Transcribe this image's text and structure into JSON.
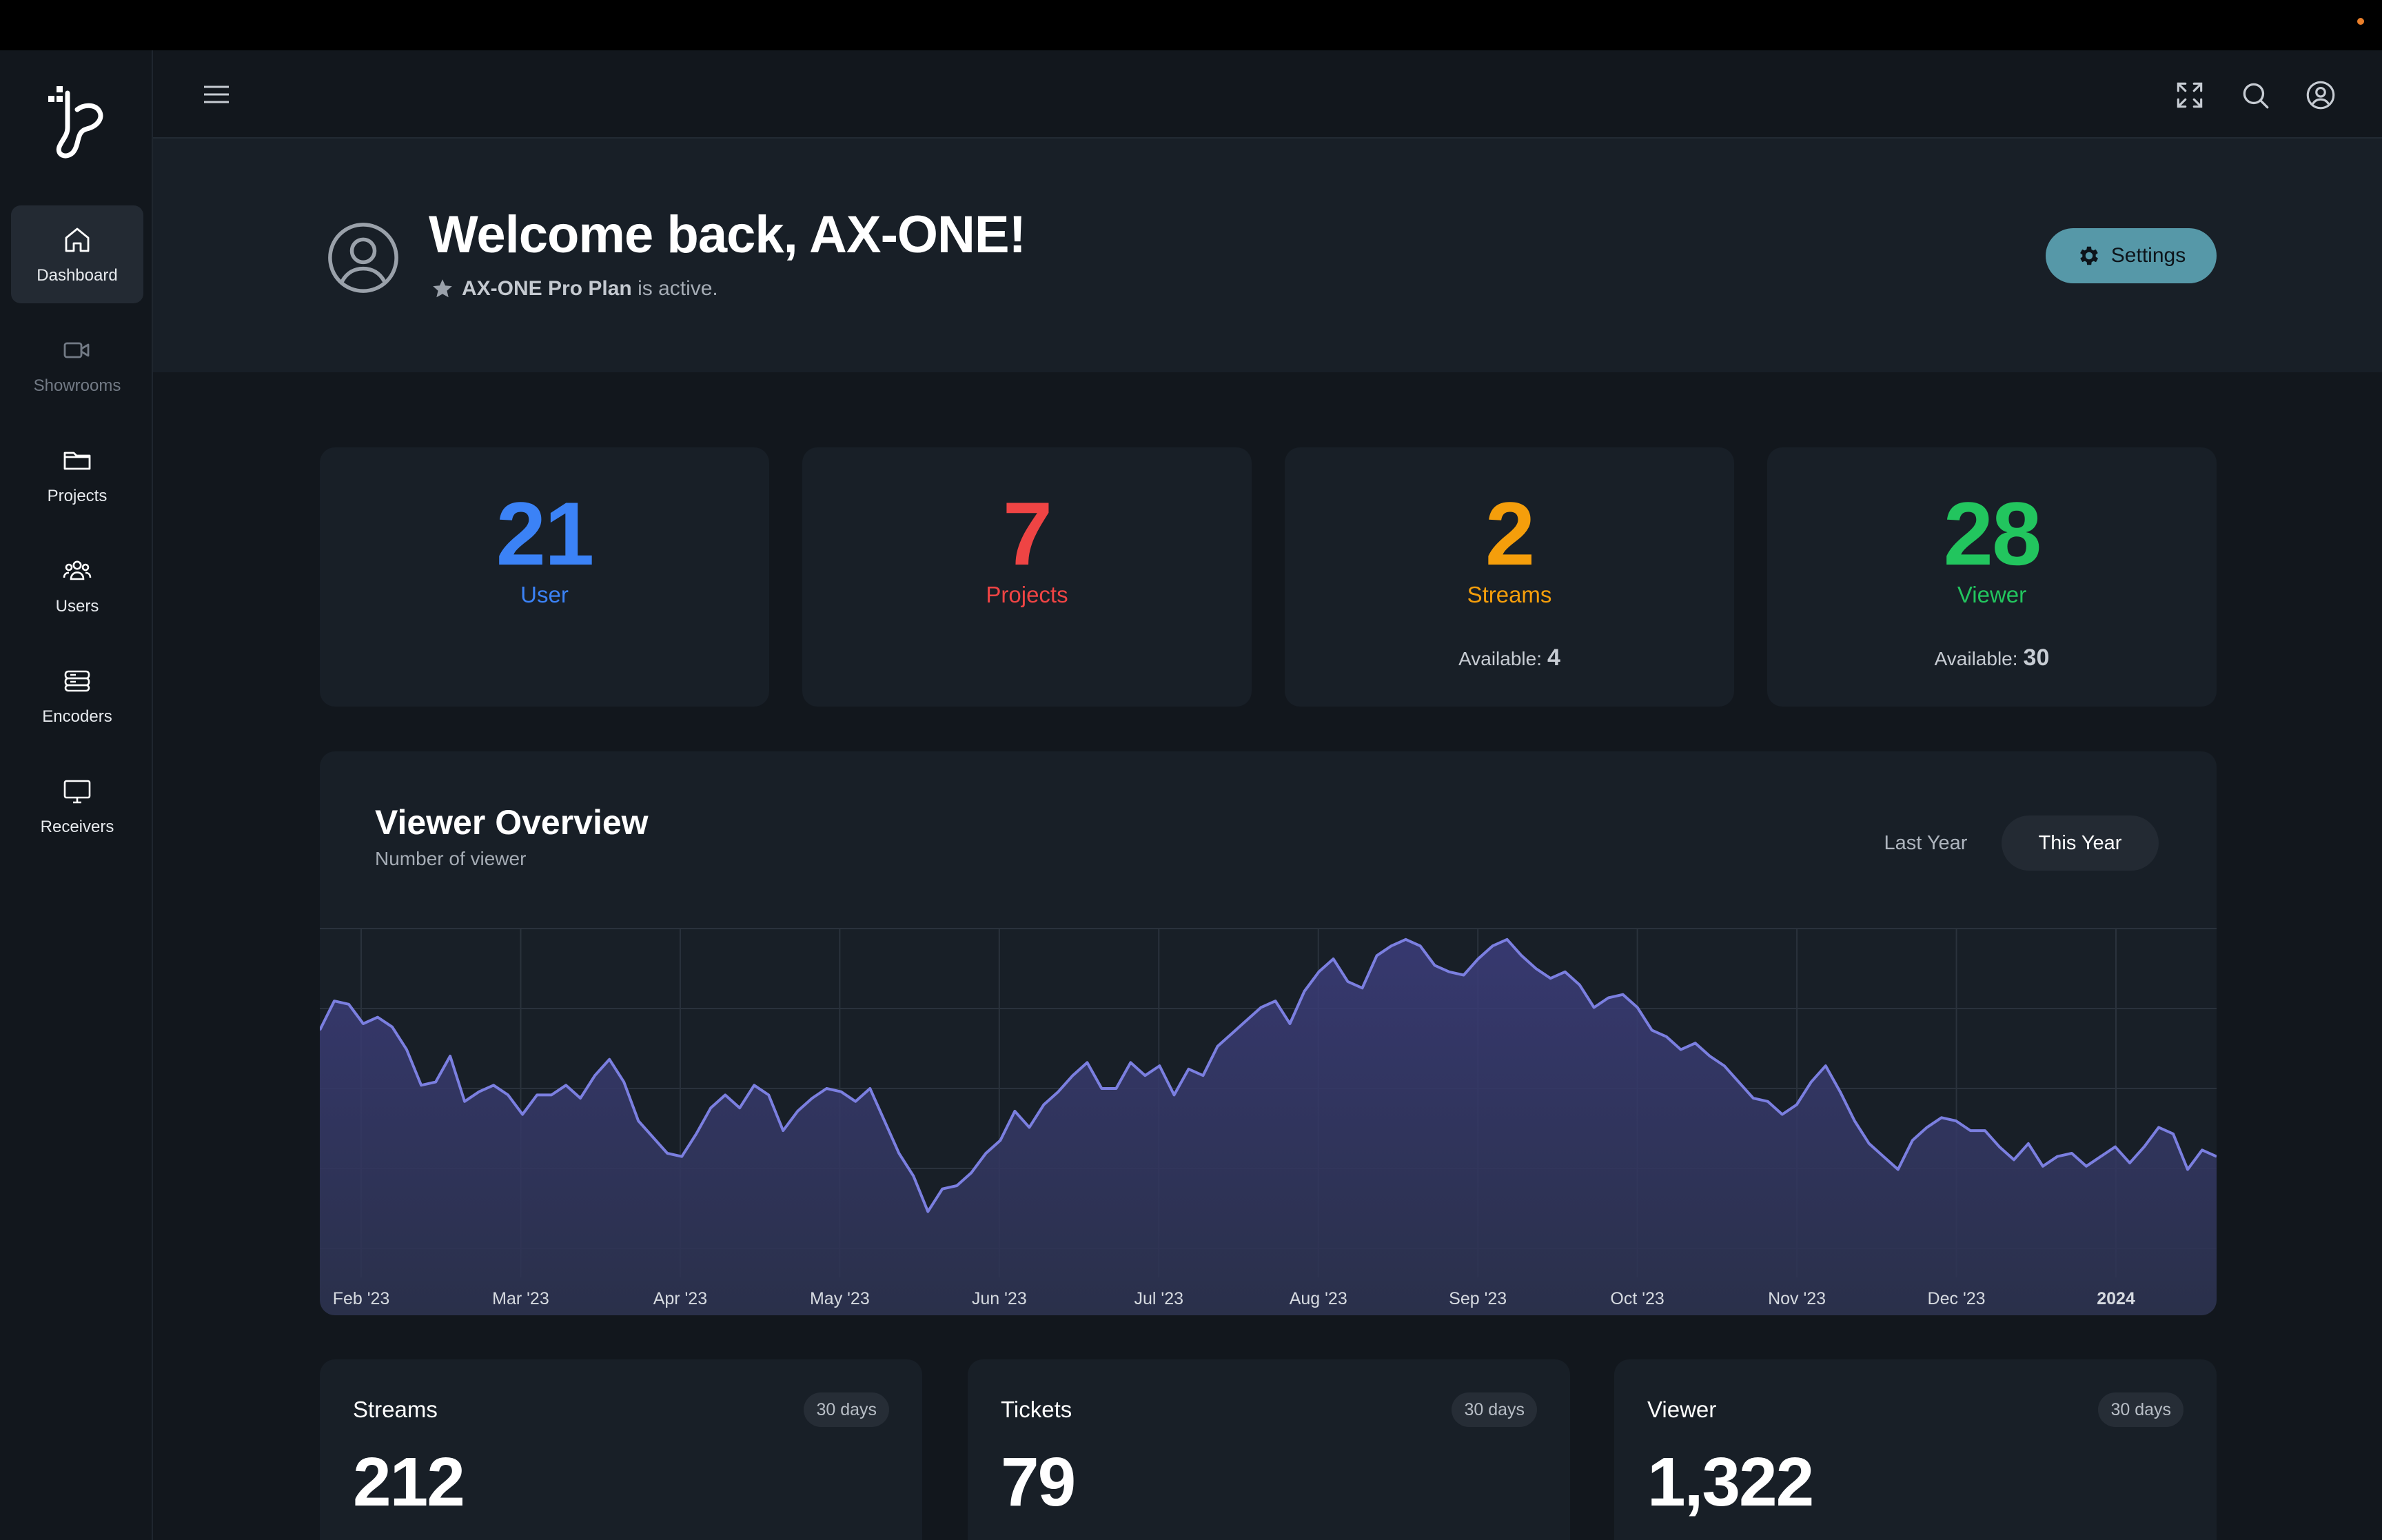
{
  "sidebar": {
    "items": [
      {
        "label": "Dashboard",
        "icon": "home-icon",
        "active": true
      },
      {
        "label": "Showrooms",
        "icon": "video-camera-icon",
        "active": false
      },
      {
        "label": "Projects",
        "icon": "folder-icon",
        "active": false
      },
      {
        "label": "Users",
        "icon": "users-icon",
        "active": false
      },
      {
        "label": "Encoders",
        "icon": "server-icon",
        "active": false
      },
      {
        "label": "Receivers",
        "icon": "monitor-icon",
        "active": false
      }
    ]
  },
  "header": {
    "icons": [
      "menu-icon",
      "fullscreen-icon",
      "search-icon",
      "account-icon"
    ]
  },
  "hero": {
    "welcome": "Welcome back, AX-ONE!",
    "plan_name": "AX-ONE Pro Plan",
    "plan_suffix": "is active.",
    "settings_label": "Settings"
  },
  "stats": [
    {
      "value": "21",
      "label": "User",
      "color": "#3b82f6"
    },
    {
      "value": "7",
      "label": "Projects",
      "color": "#ef4444"
    },
    {
      "value": "2",
      "label": "Streams",
      "color": "#f59e0b",
      "available_label": "Available:",
      "available_value": "4"
    },
    {
      "value": "28",
      "label": "Viewer",
      "color": "#22c55e",
      "available_label": "Available:",
      "available_value": "30"
    }
  ],
  "viewer_overview": {
    "title": "Viewer Overview",
    "subtitle": "Number of viewer",
    "tabs": [
      "Last Year",
      "This Year"
    ],
    "active_tab": "This Year"
  },
  "chart_data": {
    "type": "area",
    "x_tick_labels": [
      "Feb '23",
      "Mar '23",
      "Apr '23",
      "May '23",
      "Jun '23",
      "Jul '23",
      "Aug '23",
      "Sep '23",
      "Oct '23",
      "Nov '23",
      "Dec '23",
      "2024"
    ],
    "grid": true,
    "line_color": "#7b7fe0",
    "ylim": [
      0,
      100
    ],
    "series": [
      {
        "values": [
          68,
          77,
          76,
          70,
          72,
          69,
          62,
          51,
          52,
          60,
          46,
          49,
          51,
          48,
          42,
          48,
          48,
          51,
          47,
          54,
          59,
          52,
          40,
          35,
          30,
          29,
          36,
          44,
          48,
          44,
          51,
          48,
          37,
          43,
          47,
          50,
          49,
          46,
          50,
          40,
          30,
          23,
          12,
          19,
          20,
          24,
          30,
          34,
          43,
          38,
          45,
          49,
          54,
          58,
          50,
          50,
          58,
          54,
          57,
          48,
          56,
          54,
          63,
          67,
          71,
          75,
          77,
          70,
          80,
          86,
          90,
          83,
          81,
          91,
          94,
          96,
          94,
          88,
          86,
          85,
          90,
          94,
          96,
          91,
          87,
          84,
          86,
          82,
          75,
          78,
          79,
          75,
          68,
          66,
          62,
          64,
          60,
          57,
          52,
          47,
          46,
          42,
          45,
          52,
          57,
          49,
          40,
          33,
          29,
          25,
          34,
          38,
          41,
          40,
          37,
          37,
          32,
          28,
          33,
          26,
          29,
          30,
          26,
          29,
          32,
          27,
          32,
          38,
          36,
          25,
          31,
          29
        ]
      }
    ]
  },
  "mini_cards": [
    {
      "title": "Streams",
      "badge": "30 days",
      "value": "212"
    },
    {
      "title": "Tickets",
      "badge": "30 days",
      "value": "79"
    },
    {
      "title": "Viewer",
      "badge": "30 days",
      "value": "1,322"
    }
  ]
}
